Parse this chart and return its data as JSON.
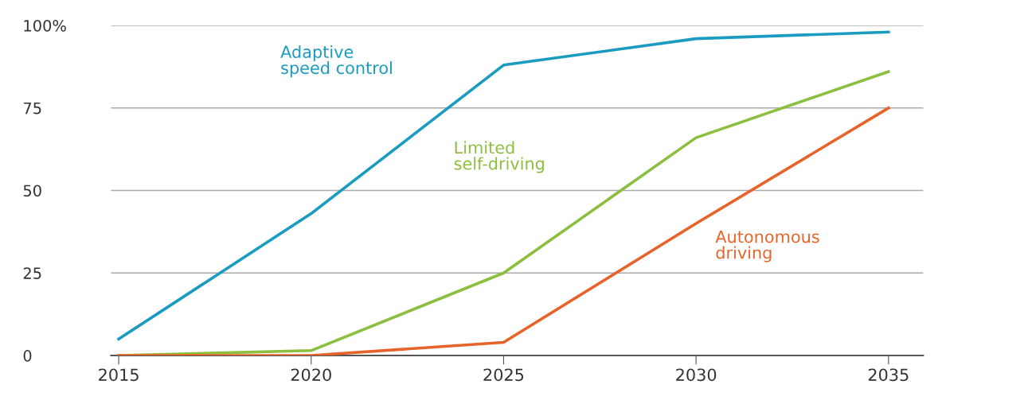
{
  "chart_data": {
    "type": "line",
    "x": [
      2015,
      2020,
      2025,
      2030,
      2035
    ],
    "series": [
      {
        "name": "Adaptive\nspeed control",
        "color": "#1a9bc0",
        "values": [
          5,
          43,
          88,
          96,
          98
        ]
      },
      {
        "name": "Limited\nself-driving",
        "color": "#8cbf3f",
        "values": [
          0,
          1.5,
          25,
          66,
          86
        ]
      },
      {
        "name": "Autonomous\ndriving",
        "color": "#e8632a",
        "values": [
          0,
          0,
          4,
          40,
          75
        ]
      }
    ],
    "xlim": [
      2014.8,
      2035.9
    ],
    "xticks": [
      2015,
      2020,
      2025,
      2030,
      2035
    ],
    "ylim": [
      0,
      100
    ],
    "yticks": [
      0,
      25,
      50,
      75,
      {
        "value": 100,
        "label": "100%"
      }
    ],
    "grid": "y",
    "legend": false,
    "marker": "none",
    "line_style": "solid"
  }
}
